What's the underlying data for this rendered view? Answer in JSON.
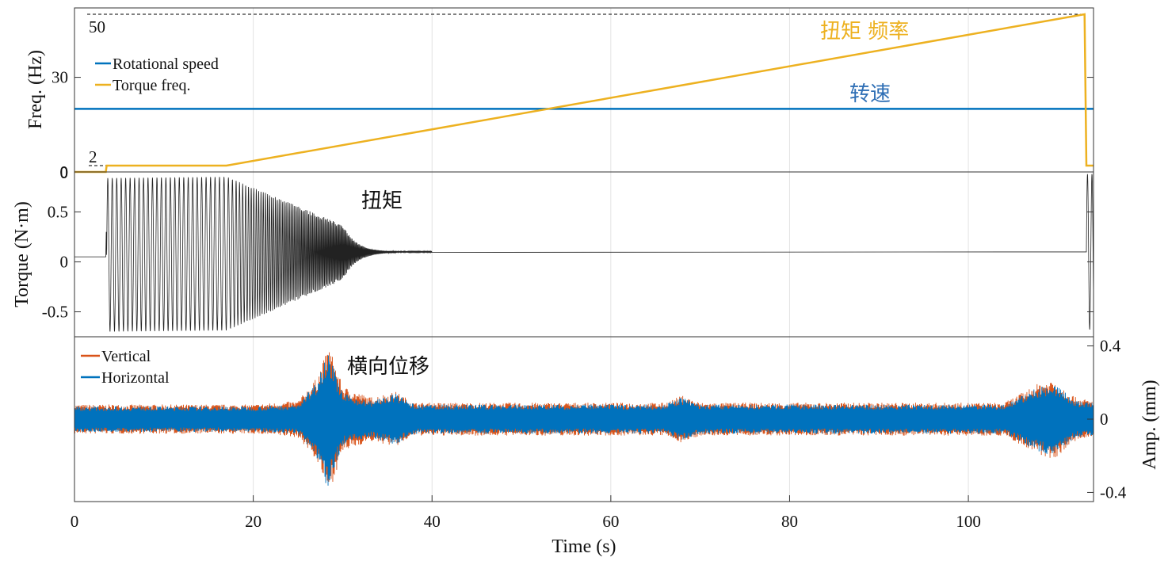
{
  "chart_data": [
    {
      "type": "line",
      "panel": "top",
      "ylabel": "Freq. (Hz)",
      "xlim": [
        0,
        114
      ],
      "ylim": [
        0,
        52
      ],
      "yticks": [
        0,
        30
      ],
      "grid": "vertical",
      "legend_placement": "top-left",
      "series": [
        {
          "name": "Rotational speed",
          "color": "#0072BD",
          "x": [
            0,
            114
          ],
          "y": [
            20,
            20
          ]
        },
        {
          "name": "Torque freq.",
          "color": "#EDB120",
          "x": [
            0,
            3.5,
            3.6,
            17,
            113,
            113.2,
            114
          ],
          "y": [
            0,
            0,
            2,
            2,
            50,
            2,
            2
          ]
        }
      ],
      "annotations": [
        {
          "text": "50",
          "kind": "reference-label",
          "value": 50
        },
        {
          "text": "2",
          "kind": "reference-label",
          "value": 2
        },
        {
          "text": "扭矩 频率",
          "color": "#EDB120"
        },
        {
          "text": "转速",
          "color": "#0072BD"
        }
      ],
      "reference_lines": [
        50,
        2
      ]
    },
    {
      "type": "line",
      "panel": "middle",
      "ylabel": "Torque (N·m)",
      "xlim": [
        0,
        114
      ],
      "ylim": [
        -0.75,
        0.9
      ],
      "yticks": [
        -0.5,
        0,
        0.5
      ],
      "ytick_labels": [
        "-0.5",
        "0",
        "0.5"
      ],
      "top_tick_label": "0",
      "grid": "vertical",
      "series": [
        {
          "name": "",
          "color": "#000000",
          "description_points": {
            "baseline_before": 0.05,
            "baseline_after": 0.1,
            "oscillation_start": 3.6,
            "oscillation_end": 36,
            "peak_max": 0.84,
            "peak_min": -0.7,
            "amplitude_decay_start": 17,
            "burst_time": 113.5
          }
        }
      ],
      "annotations": [
        {
          "text": "扭矩"
        }
      ]
    },
    {
      "type": "line",
      "panel": "bottom",
      "ylabel": "Amp. (mm)",
      "xlabel": "Time (s)",
      "xlim": [
        0,
        114
      ],
      "xticks": [
        0,
        20,
        40,
        60,
        80,
        100
      ],
      "ylim": [
        -0.45,
        0.45
      ],
      "yticks": [
        -0.4,
        0,
        0.4
      ],
      "ytick_labels": [
        "-0.4",
        "0",
        "0.4"
      ],
      "grid": "vertical",
      "legend_placement": "top-left",
      "series": [
        {
          "name": "Vertical",
          "color": "#D95319",
          "envelope": [
            [
              0,
              0.08
            ],
            [
              20,
              0.08
            ],
            [
              25,
              0.1
            ],
            [
              27,
              0.22
            ],
            [
              28.5,
              0.4
            ],
            [
              30,
              0.18
            ],
            [
              33,
              0.12
            ],
            [
              36,
              0.15
            ],
            [
              38,
              0.09
            ],
            [
              66,
              0.09
            ],
            [
              68,
              0.13
            ],
            [
              70,
              0.09
            ],
            [
              104,
              0.09
            ],
            [
              108,
              0.2
            ],
            [
              109.5,
              0.22
            ],
            [
              112,
              0.12
            ],
            [
              114,
              0.1
            ]
          ]
        },
        {
          "name": "Horizontal",
          "color": "#0072BD",
          "envelope": [
            [
              0,
              0.07
            ],
            [
              20,
              0.07
            ],
            [
              25,
              0.08
            ],
            [
              27,
              0.2
            ],
            [
              28.3,
              0.38
            ],
            [
              30,
              0.14
            ],
            [
              33,
              0.1
            ],
            [
              36,
              0.14
            ],
            [
              38,
              0.08
            ],
            [
              66,
              0.08
            ],
            [
              68,
              0.12
            ],
            [
              70,
              0.08
            ],
            [
              104,
              0.08
            ],
            [
              108,
              0.18
            ],
            [
              109.5,
              0.2
            ],
            [
              112,
              0.1
            ],
            [
              114,
              0.09
            ]
          ]
        }
      ],
      "annotations": [
        {
          "text": "横向位移"
        }
      ]
    }
  ]
}
